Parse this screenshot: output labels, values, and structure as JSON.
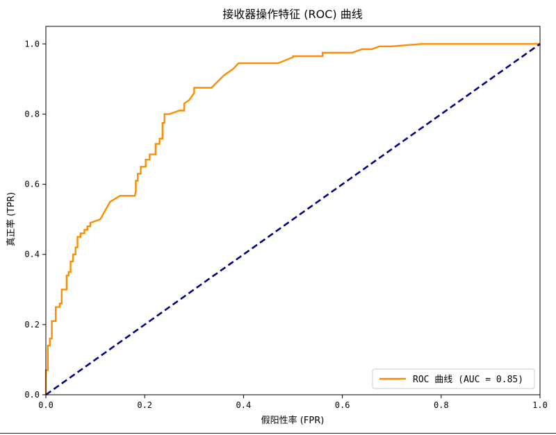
{
  "chart_data": {
    "type": "line",
    "title": "接收器操作特征 (ROC) 曲线",
    "xlabel": "假阳性率 (FPR)",
    "ylabel": "真正率 (TPR)",
    "xlim": [
      0.0,
      1.0
    ],
    "ylim": [
      0.0,
      1.05
    ],
    "xticks": [
      0.0,
      0.2,
      0.4,
      0.6,
      0.8,
      1.0
    ],
    "xtick_labels": [
      "0.0",
      "0.2",
      "0.4",
      "0.6",
      "0.8",
      "1.0"
    ],
    "yticks": [
      0.0,
      0.2,
      0.4,
      0.6,
      0.8,
      1.0
    ],
    "ytick_labels": [
      "0.0",
      "0.2",
      "0.4",
      "0.6",
      "0.8",
      "1.0"
    ],
    "grid": false,
    "legend_position": "lower right",
    "series": [
      {
        "name": "ROC 曲线 (AUC = 0.85)",
        "color": "#ff8c00",
        "style": "solid",
        "x": [
          0.0,
          0.0,
          0.0,
          0.004,
          0.004,
          0.008,
          0.008,
          0.012,
          0.012,
          0.02,
          0.02,
          0.028,
          0.028,
          0.032,
          0.032,
          0.042,
          0.042,
          0.046,
          0.046,
          0.05,
          0.05,
          0.055,
          0.055,
          0.06,
          0.06,
          0.064,
          0.064,
          0.07,
          0.07,
          0.078,
          0.078,
          0.084,
          0.084,
          0.09,
          0.09,
          0.11,
          0.13,
          0.15,
          0.18,
          0.182,
          0.182,
          0.186,
          0.186,
          0.192,
          0.192,
          0.202,
          0.202,
          0.21,
          0.21,
          0.222,
          0.222,
          0.23,
          0.23,
          0.236,
          0.236,
          0.24,
          0.24,
          0.25,
          0.27,
          0.28,
          0.28,
          0.29,
          0.3,
          0.3,
          0.335,
          0.36,
          0.37,
          0.37,
          0.38,
          0.38,
          0.39,
          0.39,
          0.47,
          0.5,
          0.5,
          0.54,
          0.56,
          0.56,
          0.6,
          0.62,
          0.64,
          0.645,
          0.65,
          0.66,
          0.675,
          0.7,
          0.76,
          0.8,
          1.0
        ],
        "y": [
          0.0,
          0.03,
          0.07,
          0.07,
          0.14,
          0.14,
          0.16,
          0.16,
          0.21,
          0.21,
          0.25,
          0.25,
          0.26,
          0.26,
          0.3,
          0.3,
          0.34,
          0.34,
          0.35,
          0.35,
          0.38,
          0.38,
          0.4,
          0.4,
          0.42,
          0.42,
          0.45,
          0.45,
          0.46,
          0.46,
          0.47,
          0.47,
          0.48,
          0.48,
          0.49,
          0.5,
          0.55,
          0.567,
          0.567,
          0.58,
          0.61,
          0.61,
          0.63,
          0.63,
          0.65,
          0.65,
          0.67,
          0.67,
          0.685,
          0.685,
          0.715,
          0.715,
          0.73,
          0.73,
          0.775,
          0.775,
          0.8,
          0.8,
          0.81,
          0.81,
          0.83,
          0.84,
          0.86,
          0.875,
          0.875,
          0.91,
          0.92,
          0.92,
          0.93,
          0.93,
          0.945,
          0.945,
          0.945,
          0.962,
          0.965,
          0.965,
          0.965,
          0.975,
          0.975,
          0.975,
          0.985,
          0.985,
          0.985,
          0.985,
          0.993,
          0.993,
          1.0,
          1.0,
          1.0
        ]
      },
      {
        "name": "",
        "color": "#000080",
        "style": "dashed",
        "x": [
          0.0,
          1.0
        ],
        "y": [
          0.0,
          1.0
        ]
      }
    ]
  }
}
